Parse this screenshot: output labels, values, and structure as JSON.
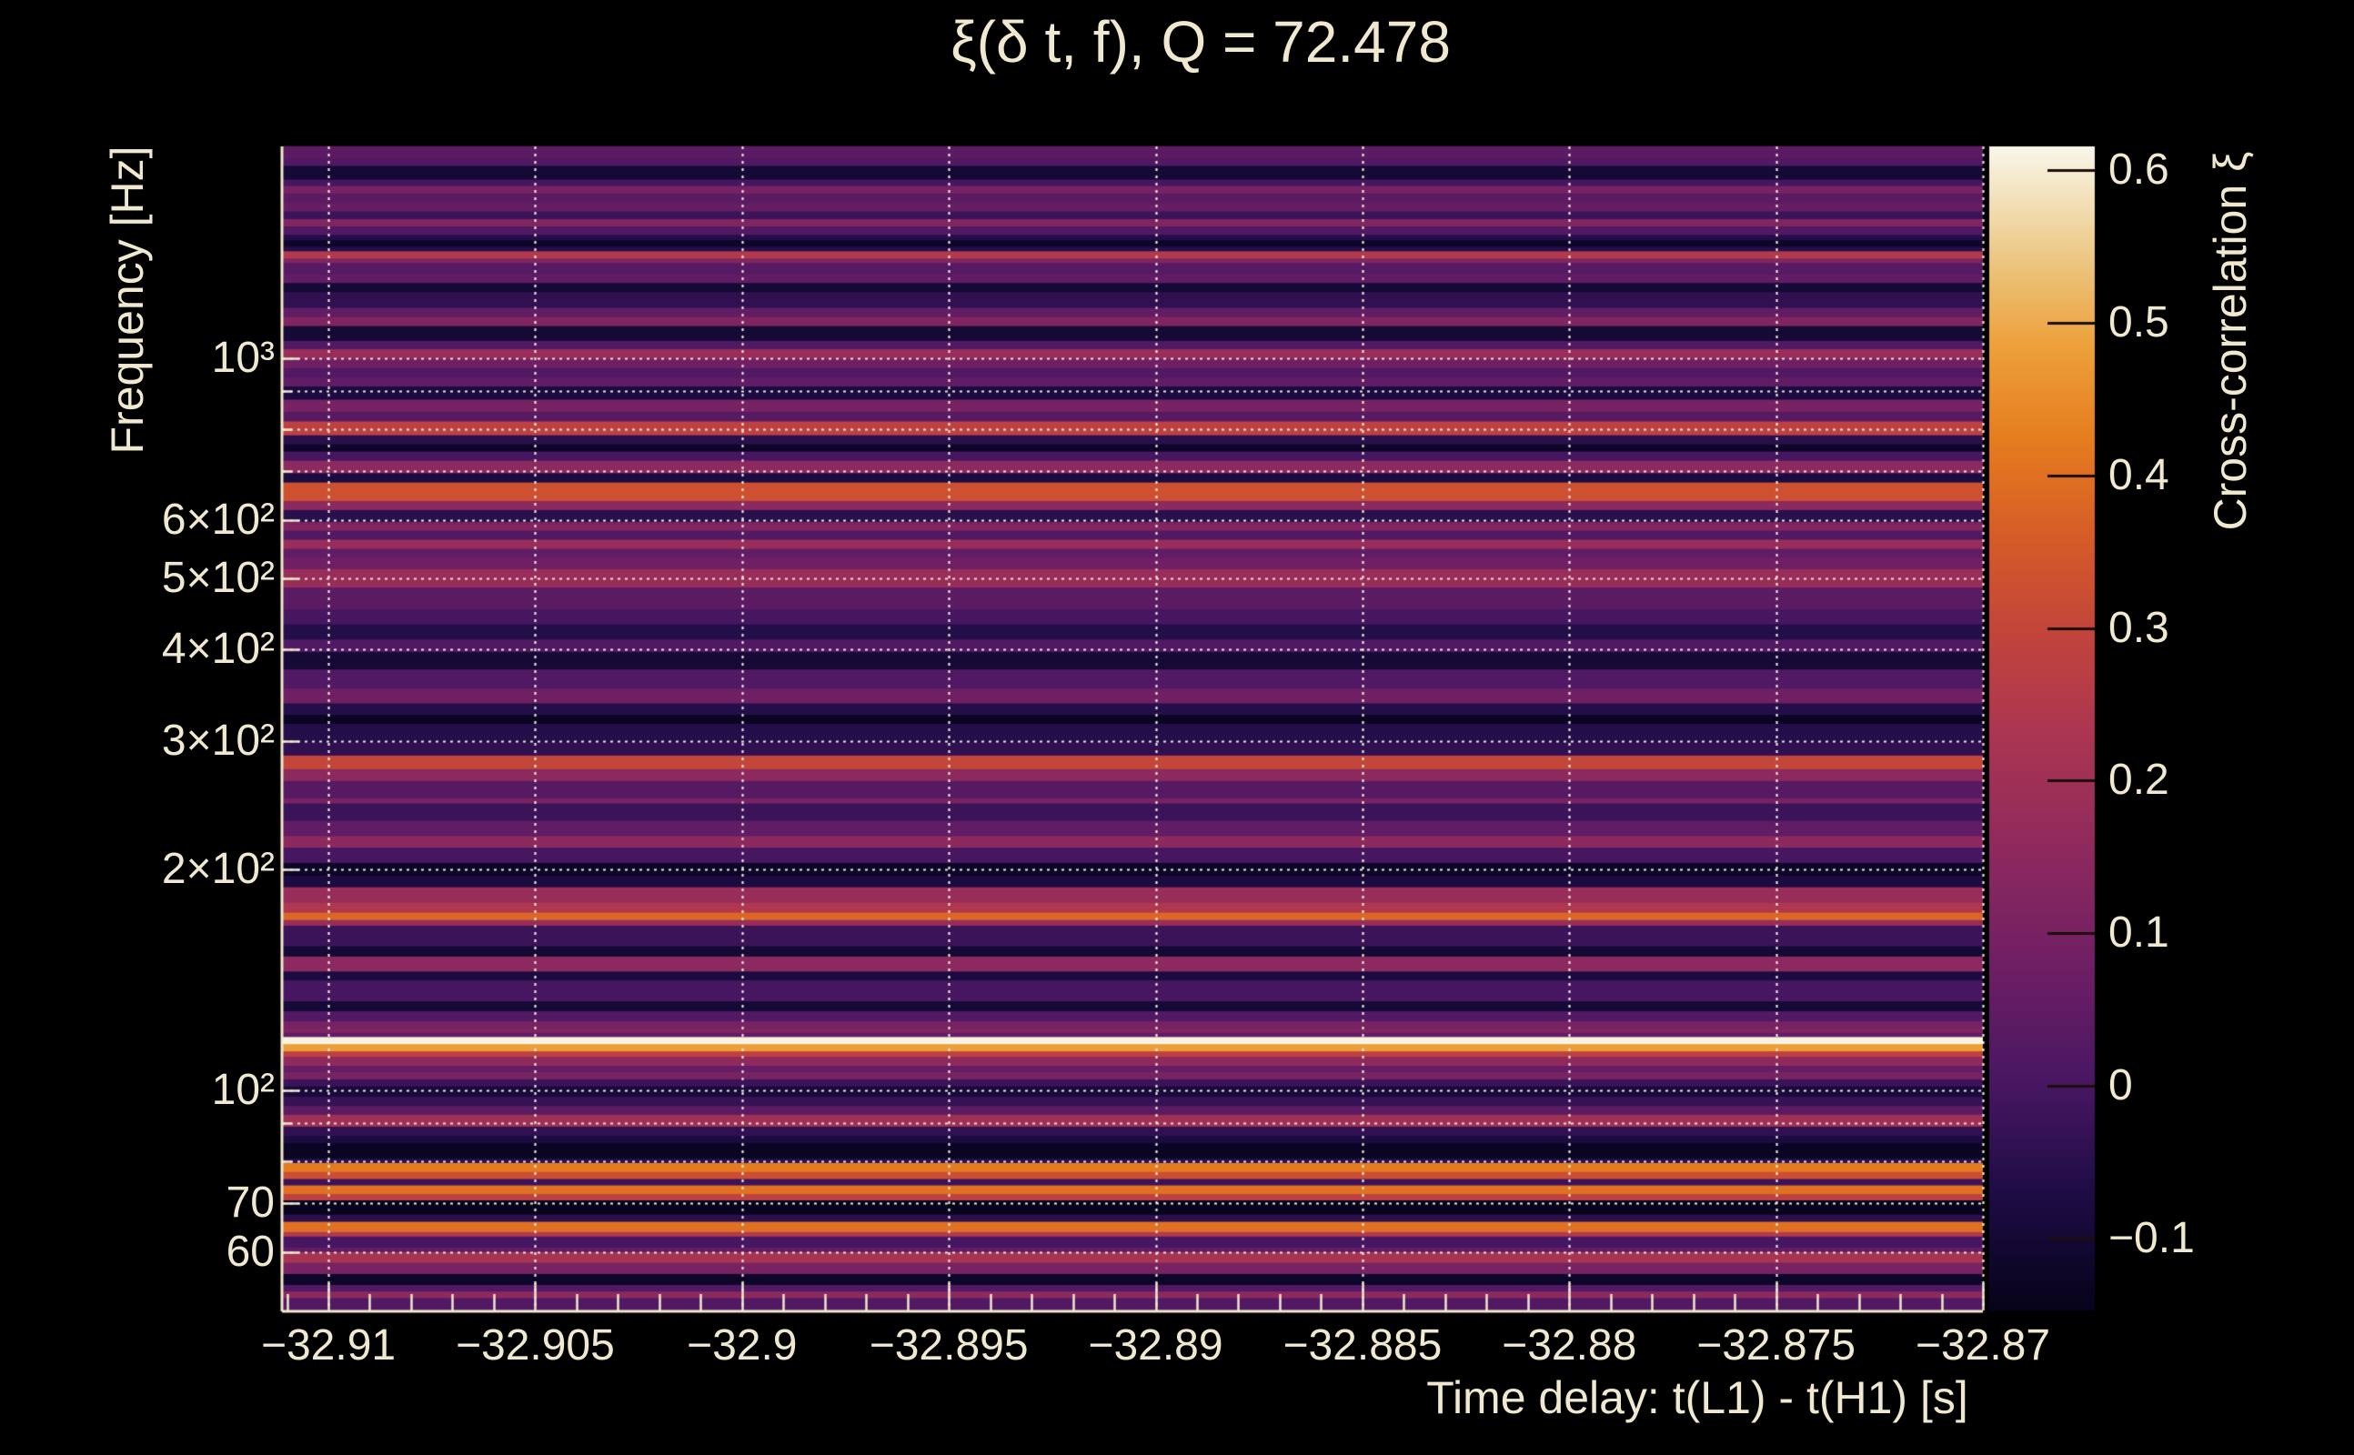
{
  "title": "ξ(δ t, f), Q = 72.478",
  "colors": {
    "background": "#000000",
    "text": "#f1e9cf",
    "grid": "rgba(249,243,227,0.95)",
    "axis_line": "#f1e9cf",
    "colorbar_tick": "#1a0e08"
  },
  "chart_data": {
    "type": "heatmap",
    "title": "ξ(δ t, f), Q = 72.478",
    "x_axis": {
      "label": "Time delay: t(L1) - t(H1) [s]",
      "min": -32.9111,
      "max": -32.87,
      "minor_tick_step": 0.001,
      "ticks": [
        {
          "value": -32.91,
          "label": "−32.91"
        },
        {
          "value": -32.905,
          "label": "−32.905"
        },
        {
          "value": -32.9,
          "label": "−32.9"
        },
        {
          "value": -32.895,
          "label": "−32.895"
        },
        {
          "value": -32.89,
          "label": "−32.89"
        },
        {
          "value": -32.885,
          "label": "−32.885"
        },
        {
          "value": -32.88,
          "label": "−32.88"
        },
        {
          "value": -32.875,
          "label": "−32.875"
        },
        {
          "value": -32.87,
          "label": "−32.87"
        }
      ]
    },
    "y_axis": {
      "label": "Frequency [Hz]",
      "scale": "log",
      "min": 50,
      "max": 1945,
      "ticks": [
        {
          "value": 1000,
          "label": "10³"
        },
        {
          "value": 600,
          "label": "6×10²"
        },
        {
          "value": 500,
          "label": "5×10²"
        },
        {
          "value": 400,
          "label": "4×10²"
        },
        {
          "value": 300,
          "label": "3×10²"
        },
        {
          "value": 200,
          "label": "2×10²"
        },
        {
          "value": 100,
          "label": "10²"
        },
        {
          "value": 70,
          "label": "70"
        },
        {
          "value": 60,
          "label": "60"
        }
      ],
      "gridline_values": [
        60,
        70,
        80,
        90,
        100,
        200,
        300,
        400,
        500,
        600,
        700,
        800,
        900,
        1000
      ],
      "minor_tick_values": [
        50,
        60,
        70,
        80,
        90,
        100,
        200,
        300,
        400,
        500,
        600,
        700,
        800,
        900,
        1000
      ]
    },
    "z_axis": {
      "label": "Cross-correlation ξ",
      "min": -0.147,
      "max": 0.6155,
      "ticks": [
        {
          "value": 0.6,
          "label": "0.6"
        },
        {
          "value": 0.5,
          "label": "0.5"
        },
        {
          "value": 0.4,
          "label": "0.4"
        },
        {
          "value": 0.3,
          "label": "0.3"
        },
        {
          "value": 0.2,
          "label": "0.2"
        },
        {
          "value": 0.1,
          "label": "0.1"
        },
        {
          "value": 0,
          "label": "0"
        },
        {
          "value": -0.1,
          "label": "−0.1"
        }
      ]
    },
    "colormap": {
      "name": "inferno-like",
      "stops": [
        [
          0.0,
          "#06031a"
        ],
        [
          0.1,
          "#1e0c45"
        ],
        [
          0.2,
          "#4a1763"
        ],
        [
          0.3,
          "#701f64"
        ],
        [
          0.4,
          "#8f2a5d"
        ],
        [
          0.5,
          "#ad3651"
        ],
        [
          0.58,
          "#c2443c"
        ],
        [
          0.66,
          "#d55a28"
        ],
        [
          0.75,
          "#e67d1f"
        ],
        [
          0.83,
          "#eda13c"
        ],
        [
          0.9,
          "#ecc57f"
        ],
        [
          0.96,
          "#f3e3c0"
        ],
        [
          1.0,
          "#faf6ea"
        ]
      ]
    },
    "bands_format": [
      "freq_hi_hz",
      "freq_lo_hz",
      "xi"
    ],
    "bands": [
      [
        1945,
        1870,
        0.04
      ],
      [
        1870,
        1827,
        0.02
      ],
      [
        1827,
        1750,
        -0.1
      ],
      [
        1750,
        1715,
        0.0
      ],
      [
        1715,
        1675,
        0.1
      ],
      [
        1675,
        1626,
        0.04
      ],
      [
        1626,
        1583,
        0.06
      ],
      [
        1583,
        1546,
        -0.02
      ],
      [
        1546,
        1510,
        0.12
      ],
      [
        1510,
        1471,
        0.02
      ],
      [
        1471,
        1446,
        -0.06
      ],
      [
        1446,
        1417,
        -0.12
      ],
      [
        1417,
        1397,
        -0.06
      ],
      [
        1397,
        1365,
        0.25
      ],
      [
        1365,
        1346,
        0.12
      ],
      [
        1346,
        1300,
        0.03
      ],
      [
        1300,
        1264,
        0.05
      ],
      [
        1264,
        1228,
        -0.1
      ],
      [
        1228,
        1169,
        -0.04
      ],
      [
        1169,
        1136,
        0.05
      ],
      [
        1136,
        1104,
        0.12
      ],
      [
        1104,
        1054,
        -0.1
      ],
      [
        1054,
        1027,
        0.02
      ],
      [
        1027,
        995,
        0.18
      ],
      [
        995,
        967,
        0.08
      ],
      [
        967,
        939,
        0.02
      ],
      [
        939,
        913,
        0.05
      ],
      [
        913,
        876,
        -0.08
      ],
      [
        876,
        843,
        0.1
      ],
      [
        843,
        818,
        0.03
      ],
      [
        818,
        783,
        0.28
      ],
      [
        783,
        761,
        -0.05
      ],
      [
        761,
        744,
        -0.12
      ],
      [
        744,
        723,
        0.0
      ],
      [
        723,
        695,
        0.15
      ],
      [
        695,
        675,
        -0.08
      ],
      [
        675,
        637,
        0.33
      ],
      [
        637,
        619,
        0.15
      ],
      [
        619,
        596,
        -0.05
      ],
      [
        596,
        580,
        0.12
      ],
      [
        580,
        564,
        0.02
      ],
      [
        564,
        548,
        0.18
      ],
      [
        548,
        533,
        0.05
      ],
      [
        533,
        514,
        0.08
      ],
      [
        514,
        485,
        0.18
      ],
      [
        485,
        453,
        0.04
      ],
      [
        453,
        432,
        0.0
      ],
      [
        432,
        412,
        -0.06
      ],
      [
        412,
        396,
        0.02
      ],
      [
        396,
        375,
        -0.1
      ],
      [
        375,
        353,
        0.02
      ],
      [
        353,
        337,
        0.08
      ],
      [
        337,
        325,
        -0.06
      ],
      [
        325,
        316,
        -0.13
      ],
      [
        316,
        298,
        -0.06
      ],
      [
        298,
        286,
        -0.04
      ],
      [
        286,
        274,
        0.3
      ],
      [
        274,
        264,
        0.15
      ],
      [
        264,
        250,
        0.03
      ],
      [
        250,
        246,
        0.1
      ],
      [
        246,
        233,
        -0.02
      ],
      [
        233,
        222,
        0.05
      ],
      [
        222,
        214,
        0.15
      ],
      [
        214,
        204,
        0.0
      ],
      [
        204,
        196,
        -0.12
      ],
      [
        196,
        189,
        -0.08
      ],
      [
        189,
        180,
        0.18
      ],
      [
        180,
        174.5,
        0.24
      ],
      [
        174.5,
        170.5,
        0.38
      ],
      [
        170.5,
        167.5,
        0.18
      ],
      [
        167.5,
        157,
        -0.02
      ],
      [
        157,
        152,
        -0.1
      ],
      [
        152,
        145,
        0.15
      ],
      [
        145,
        141,
        -0.08
      ],
      [
        141,
        132,
        0.0
      ],
      [
        132,
        128,
        -0.1
      ],
      [
        128,
        124,
        0.02
      ],
      [
        124,
        121,
        0.1
      ],
      [
        121,
        119.5,
        0.12
      ],
      [
        119.5,
        118,
        0.05
      ],
      [
        118,
        115.4,
        0.61
      ],
      [
        115.4,
        112.8,
        0.48
      ],
      [
        112.8,
        110.9,
        0.28
      ],
      [
        110.9,
        107.8,
        0.16
      ],
      [
        107.8,
        105.7,
        0.06
      ],
      [
        105.7,
        103.3,
        0.1
      ],
      [
        103.3,
        101,
        -0.02
      ],
      [
        101,
        97.8,
        -0.09
      ],
      [
        97.8,
        95,
        -0.03
      ],
      [
        95,
        92.4,
        0.04
      ],
      [
        92.4,
        89,
        0.2
      ],
      [
        89,
        86.4,
        -0.04
      ],
      [
        86.4,
        84.5,
        -0.08
      ],
      [
        84.5,
        80.5,
        -0.13
      ],
      [
        80.5,
        79.4,
        -0.05
      ],
      [
        79.4,
        77.2,
        0.42
      ],
      [
        77.2,
        75.5,
        0.32
      ],
      [
        75.5,
        74,
        -0.02
      ],
      [
        74,
        72,
        0.4
      ],
      [
        72,
        70.6,
        0.28
      ],
      [
        70.6,
        67.5,
        -0.14
      ],
      [
        67.5,
        66,
        -0.05
      ],
      [
        66,
        63.9,
        0.4
      ],
      [
        63.9,
        63,
        0.25
      ],
      [
        63,
        60.9,
        0.0
      ],
      [
        60.9,
        60,
        0.05
      ],
      [
        60,
        58,
        0.22
      ],
      [
        58,
        56,
        0.1
      ],
      [
        56,
        54.1,
        -0.12
      ],
      [
        54.1,
        53,
        0.02
      ],
      [
        53,
        51.9,
        0.15
      ],
      [
        51.9,
        50,
        0.02
      ]
    ],
    "layout": {
      "grid": true,
      "colorbar_position": "right"
    }
  }
}
